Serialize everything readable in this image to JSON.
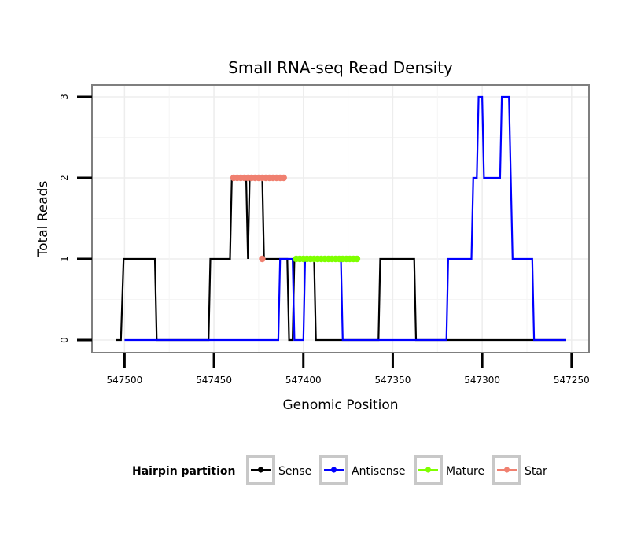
{
  "chart_data": {
    "type": "line",
    "title": "Small RNA-seq Read Density",
    "xlabel": "Genomic Position",
    "ylabel": "Total Reads",
    "x_reversed": true,
    "xlim": [
      547505,
      547253
    ],
    "ylim": [
      0,
      3
    ],
    "x_ticks": [
      547500,
      547450,
      547400,
      547350,
      547300,
      547250
    ],
    "x_tick_labels": [
      "547500",
      "547450",
      "547400",
      "547350",
      "547300",
      "547250"
    ],
    "y_ticks": [
      0,
      1,
      2,
      3
    ],
    "y_tick_labels": [
      "0",
      "1",
      "2",
      "3"
    ],
    "grid": true,
    "legend": {
      "title": "Hairpin partition",
      "position": "bottom",
      "entries": [
        {
          "name": "Sense",
          "color": "#000000"
        },
        {
          "name": "Antisense",
          "color": "#0000ff"
        },
        {
          "name": "Mature",
          "color": "#7fff00"
        },
        {
          "name": "Star",
          "color": "#f08070"
        }
      ]
    },
    "series": [
      {
        "name": "Sense",
        "color": "#000000",
        "style": "line",
        "points": [
          [
            547505,
            0
          ],
          [
            547502,
            0
          ],
          [
            547500.5,
            1
          ],
          [
            547483,
            1
          ],
          [
            547482,
            0
          ],
          [
            547453,
            0
          ],
          [
            547452,
            1
          ],
          [
            547441,
            1
          ],
          [
            547440,
            2
          ],
          [
            547432,
            2
          ],
          [
            547431,
            1
          ],
          [
            547430,
            2
          ],
          [
            547423,
            2
          ],
          [
            547422,
            1
          ],
          [
            547409,
            1
          ],
          [
            547408,
            0
          ],
          [
            547406,
            0
          ],
          [
            547405,
            1
          ],
          [
            547394,
            1
          ],
          [
            547393,
            0
          ],
          [
            547358,
            0
          ],
          [
            547357,
            1
          ],
          [
            547338,
            1
          ],
          [
            547337,
            0
          ],
          [
            547253,
            0
          ]
        ]
      },
      {
        "name": "Antisense",
        "color": "#0000ff",
        "style": "line",
        "points": [
          [
            547500,
            0
          ],
          [
            547414,
            0
          ],
          [
            547413,
            1
          ],
          [
            547406,
            1
          ],
          [
            547405,
            0
          ],
          [
            547400,
            0
          ],
          [
            547399,
            1
          ],
          [
            547379,
            1
          ],
          [
            547378,
            0
          ],
          [
            547320,
            0
          ],
          [
            547319,
            1
          ],
          [
            547306,
            1
          ],
          [
            547305,
            2
          ],
          [
            547303,
            2
          ],
          [
            547302,
            3
          ],
          [
            547300,
            3
          ],
          [
            547299,
            2
          ],
          [
            547290,
            2
          ],
          [
            547289,
            3
          ],
          [
            547285,
            3
          ],
          [
            547284,
            2
          ],
          [
            547283,
            1
          ],
          [
            547272,
            1
          ],
          [
            547271,
            0
          ],
          [
            547253,
            0
          ]
        ]
      },
      {
        "name": "Mature",
        "color": "#7fff00",
        "style": "points",
        "points": [
          [
            547404,
            1
          ],
          [
            547402,
            1
          ],
          [
            547400,
            1
          ],
          [
            547398,
            1
          ],
          [
            547396,
            1
          ],
          [
            547394,
            1
          ],
          [
            547392,
            1
          ],
          [
            547390,
            1
          ],
          [
            547388,
            1
          ],
          [
            547386,
            1
          ],
          [
            547384,
            1
          ],
          [
            547382,
            1
          ],
          [
            547380,
            1
          ],
          [
            547378,
            1
          ],
          [
            547376,
            1
          ],
          [
            547374,
            1
          ],
          [
            547372,
            1
          ],
          [
            547370,
            1
          ]
        ]
      },
      {
        "name": "Star",
        "color": "#f08070",
        "style": "points",
        "points": [
          [
            547439,
            2
          ],
          [
            547437,
            2
          ],
          [
            547435,
            2
          ],
          [
            547433,
            2
          ],
          [
            547431,
            2
          ],
          [
            547429,
            2
          ],
          [
            547427,
            2
          ],
          [
            547425,
            2
          ],
          [
            547423,
            2
          ],
          [
            547421,
            2
          ],
          [
            547419,
            2
          ],
          [
            547417,
            2
          ],
          [
            547415,
            2
          ],
          [
            547413,
            2
          ],
          [
            547411,
            2
          ],
          [
            547423,
            1
          ]
        ]
      }
    ]
  }
}
